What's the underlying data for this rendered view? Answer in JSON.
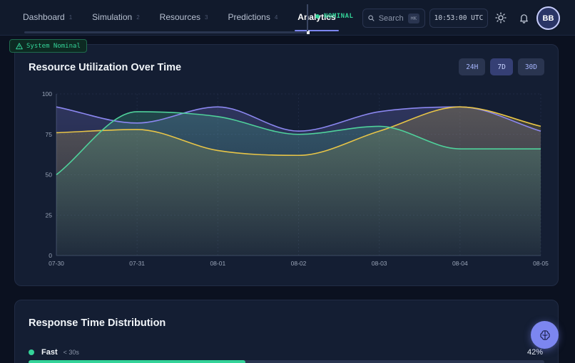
{
  "nav": {
    "tabs": [
      {
        "label": "Dashboard",
        "key": "1",
        "active": false
      },
      {
        "label": "Simulation",
        "key": "2",
        "active": false
      },
      {
        "label": "Resources",
        "key": "3",
        "active": false
      },
      {
        "label": "Predictions",
        "key": "4",
        "active": false
      },
      {
        "label": "Analytics",
        "key": "",
        "active": true
      }
    ],
    "status": "NOMINAL",
    "search_placeholder": "Search",
    "search_shortcut": "⌘K",
    "clock": "10:53:00 UTC",
    "avatar_initials": "BB"
  },
  "system_badge": "System Nominal",
  "utilization_card": {
    "title": "Resource Utilization Over Time",
    "ranges": [
      {
        "label": "24H",
        "active": false
      },
      {
        "label": "7D",
        "active": true
      },
      {
        "label": "30D",
        "active": false
      }
    ]
  },
  "chart_data": {
    "type": "area",
    "x": [
      "07-30",
      "07-31",
      "08-01",
      "08-02",
      "08-03",
      "08-04",
      "08-05"
    ],
    "ylim": [
      0,
      100
    ],
    "yticks": [
      0,
      25,
      50,
      75,
      100
    ],
    "series": [
      {
        "color": "#8b87f0",
        "values": [
          92,
          82,
          92,
          77,
          89,
          92,
          77
        ]
      },
      {
        "color": "#e8c547",
        "values": [
          76,
          78,
          65,
          62,
          77,
          92,
          80
        ]
      },
      {
        "color": "#4fd19b",
        "values": [
          50,
          89,
          86,
          75,
          80,
          66,
          66
        ]
      }
    ],
    "grid": true,
    "legend": "none"
  },
  "response_card": {
    "title": "Response Time Distribution",
    "rows": [
      {
        "name": "Fast",
        "sub": "< 30s",
        "percent_label": "42%",
        "fraction": 0.42,
        "color": "#34d399"
      }
    ]
  }
}
